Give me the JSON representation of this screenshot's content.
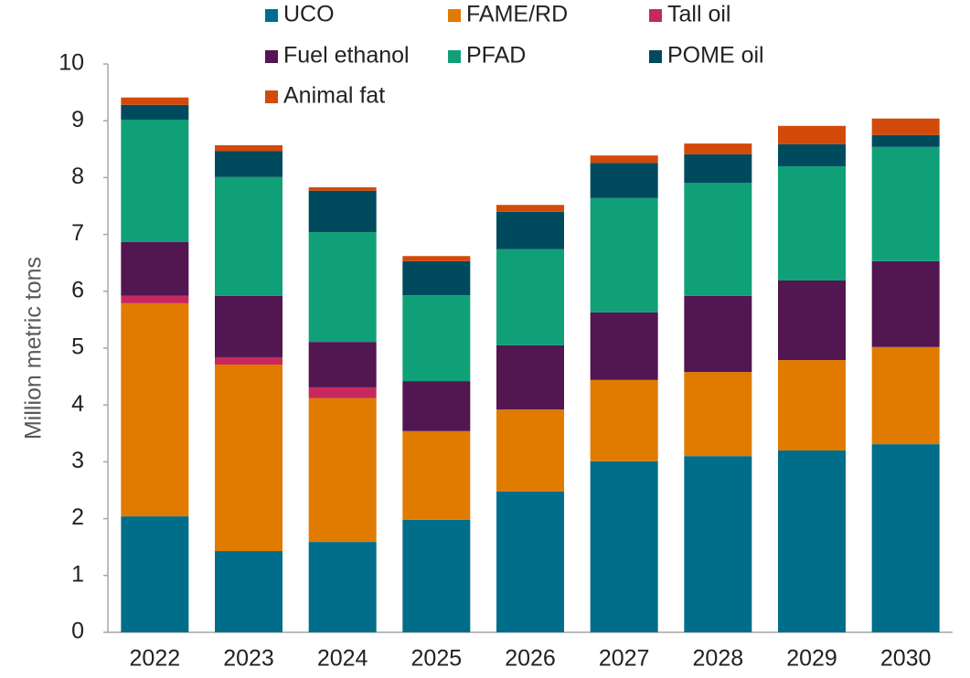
{
  "chart_data": {
    "type": "stacked_bar",
    "y_axis_label": "Million metric tons",
    "categories": [
      "2022",
      "2023",
      "2024",
      "2025",
      "2026",
      "2027",
      "2028",
      "2029",
      "2030"
    ],
    "series": [
      {
        "name": "UCO",
        "color": "#006e8a",
        "values": [
          2.04,
          1.43,
          1.59,
          1.98,
          2.48,
          3.01,
          3.1,
          3.2,
          3.31
        ]
      },
      {
        "name": "FAME/RD",
        "color": "#e07b00",
        "values": [
          3.75,
          3.28,
          2.53,
          1.56,
          1.44,
          1.43,
          1.48,
          1.59,
          1.71
        ]
      },
      {
        "name": "Tall oil",
        "color": "#c8285c",
        "values": [
          0.13,
          0.13,
          0.19,
          0,
          0,
          0,
          0,
          0,
          0
        ]
      },
      {
        "name": "Fuel ethanol",
        "color": "#521651",
        "values": [
          0.95,
          1.08,
          0.8,
          0.88,
          1.13,
          1.19,
          1.34,
          1.4,
          1.51
        ]
      },
      {
        "name": "PFAD",
        "color": "#10a078",
        "values": [
          2.15,
          2.09,
          1.93,
          1.51,
          1.69,
          2.01,
          1.99,
          2.01,
          2.01
        ]
      },
      {
        "name": "POME oil",
        "color": "#004a5e",
        "values": [
          0.26,
          0.46,
          0.73,
          0.6,
          0.66,
          0.62,
          0.5,
          0.39,
          0.21
        ]
      },
      {
        "name": "Animal fat",
        "color": "#d24a0a",
        "values": [
          0.13,
          0.1,
          0.06,
          0.09,
          0.12,
          0.13,
          0.19,
          0.32,
          0.29
        ]
      }
    ],
    "ylim": [
      0,
      10
    ],
    "yticks": [
      0,
      1,
      2,
      3,
      4,
      5,
      6,
      7,
      8,
      9,
      10
    ],
    "legend": "top",
    "grid": false
  }
}
